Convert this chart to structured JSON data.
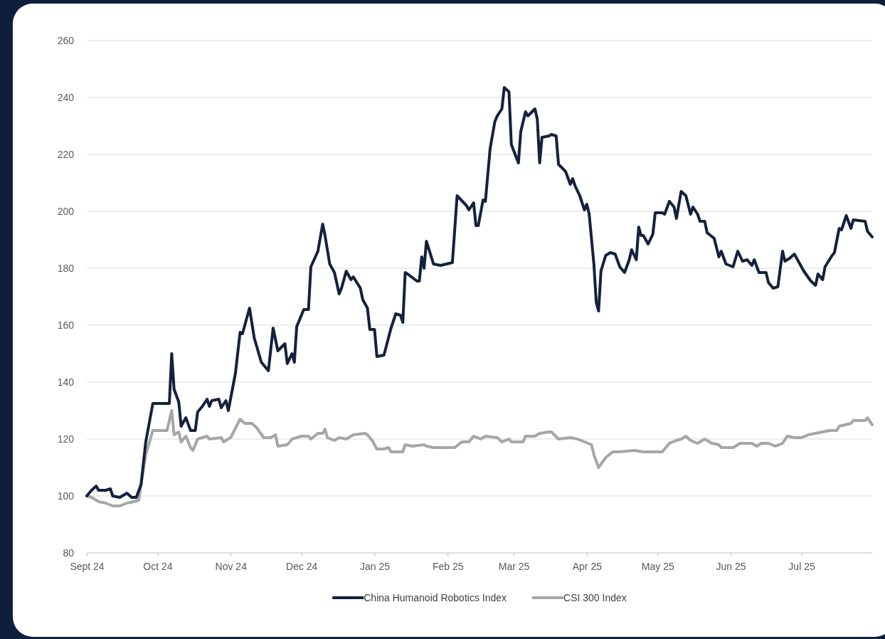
{
  "chart_data": {
    "type": "line",
    "xlim": [
      "2024-09-01",
      "2025-07-31"
    ],
    "xticks": [
      {
        "value": "2024-09-01",
        "label": "Sept 24"
      },
      {
        "value": "2024-10-01",
        "label": "Oct 24"
      },
      {
        "value": "2024-11-01",
        "label": "Nov 24"
      },
      {
        "value": "2024-12-01",
        "label": "Dec 24"
      },
      {
        "value": "2025-01-01",
        "label": "Jan 25"
      },
      {
        "value": "2025-02-01",
        "label": "Feb 25"
      },
      {
        "value": "2025-03-01",
        "label": "Mar 25"
      },
      {
        "value": "2025-04-01",
        "label": "Apr 25"
      },
      {
        "value": "2025-05-01",
        "label": "May 25"
      },
      {
        "value": "2025-06-01",
        "label": "Jun 25"
      },
      {
        "value": "2025-07-01",
        "label": "Jul 25"
      }
    ],
    "ylim": [
      80,
      260
    ],
    "yticks": [
      80,
      100,
      120,
      140,
      160,
      180,
      200,
      220,
      240,
      260
    ],
    "grid": "y",
    "legend": "bottom",
    "line_style": "solid",
    "marker": "none",
    "series": [
      {
        "name": "China Humanoid Robotics Index",
        "color": "#14213d",
        "x": [
          "2024-09-01",
          "2024-09-03",
          "2024-09-05",
          "2024-09-06",
          "2024-09-09",
          "2024-09-11",
          "2024-09-12",
          "2024-09-15",
          "2024-09-18",
          "2024-09-20",
          "2024-09-22",
          "2024-09-24",
          "2024-09-26",
          "2024-09-29",
          "2024-10-05",
          "2024-10-06",
          "2024-10-07",
          "2024-10-08",
          "2024-10-10",
          "2024-10-11",
          "2024-10-13",
          "2024-10-15",
          "2024-10-17",
          "2024-10-18",
          "2024-10-20",
          "2024-10-22",
          "2024-10-23",
          "2024-10-24",
          "2024-10-27",
          "2024-10-28",
          "2024-10-30",
          "2024-10-31",
          "2024-11-03",
          "2024-11-05",
          "2024-11-06",
          "2024-11-09",
          "2024-11-11",
          "2024-11-14",
          "2024-11-17",
          "2024-11-19",
          "2024-11-21",
          "2024-11-24",
          "2024-11-25",
          "2024-11-27",
          "2024-11-28",
          "2024-11-29",
          "2024-12-02",
          "2024-12-04",
          "2024-12-05",
          "2024-12-08",
          "2024-12-10",
          "2024-12-11",
          "2024-12-13",
          "2024-12-15",
          "2024-12-17",
          "2024-12-18",
          "2024-12-20",
          "2024-12-22",
          "2024-12-23",
          "2024-12-26",
          "2024-12-27",
          "2024-12-29",
          "2024-12-30",
          "2025-01-01",
          "2025-01-02",
          "2025-01-05",
          "2025-01-08",
          "2025-01-10",
          "2025-01-12",
          "2025-01-13",
          "2025-01-14",
          "2025-01-15",
          "2025-01-19",
          "2025-01-20",
          "2025-01-21",
          "2025-01-22",
          "2025-01-23",
          "2025-01-26",
          "2025-01-29",
          "2025-02-03",
          "2025-02-04",
          "2025-02-05",
          "2025-02-09",
          "2025-02-10",
          "2025-02-12",
          "2025-02-13",
          "2025-02-14",
          "2025-02-16",
          "2025-02-17",
          "2025-02-19",
          "2025-02-21",
          "2025-02-22",
          "2025-02-24",
          "2025-02-25",
          "2025-02-27",
          "2025-02-28",
          "2025-03-03",
          "2025-03-04",
          "2025-03-06",
          "2025-03-07",
          "2025-03-10",
          "2025-03-11",
          "2025-03-12",
          "2025-03-13",
          "2025-03-16",
          "2025-03-17",
          "2025-03-19",
          "2025-03-20",
          "2025-03-23",
          "2025-03-25",
          "2025-03-26",
          "2025-03-27",
          "2025-03-29",
          "2025-03-31",
          "2025-04-01",
          "2025-04-02",
          "2025-04-04",
          "2025-04-05",
          "2025-04-06",
          "2025-04-07",
          "2025-04-09",
          "2025-04-11",
          "2025-04-13",
          "2025-04-15",
          "2025-04-17",
          "2025-04-19",
          "2025-04-20",
          "2025-04-22",
          "2025-04-23",
          "2025-04-24",
          "2025-04-25",
          "2025-04-27",
          "2025-04-29",
          "2025-04-30",
          "2025-05-03",
          "2025-05-04",
          "2025-05-06",
          "2025-05-08",
          "2025-05-09",
          "2025-05-11",
          "2025-05-13",
          "2025-05-15",
          "2025-05-16",
          "2025-05-18",
          "2025-05-19",
          "2025-05-21",
          "2025-05-22",
          "2025-05-25",
          "2025-05-27",
          "2025-05-28",
          "2025-05-30",
          "2025-06-02",
          "2025-06-04",
          "2025-06-06",
          "2025-06-08",
          "2025-06-10",
          "2025-06-11",
          "2025-06-13",
          "2025-06-16",
          "2025-06-17",
          "2025-06-19",
          "2025-06-21",
          "2025-06-23",
          "2025-06-24",
          "2025-06-26",
          "2025-06-28",
          "2025-06-29",
          "2025-07-02",
          "2025-07-05",
          "2025-07-07",
          "2025-07-08",
          "2025-07-10",
          "2025-07-11",
          "2025-07-14",
          "2025-07-15",
          "2025-07-17",
          "2025-07-18",
          "2025-07-20",
          "2025-07-22",
          "2025-07-23",
          "2025-07-28",
          "2025-07-29",
          "2025-07-31"
        ],
        "values": [
          100,
          102,
          103.5,
          102,
          102,
          102.5,
          100,
          99.5,
          101,
          99.5,
          99.5,
          104,
          119,
          132.5,
          132.5,
          132.5,
          150,
          137.5,
          133,
          124.5,
          127.5,
          123,
          123,
          129.5,
          131.5,
          134,
          131.5,
          133.5,
          134,
          131,
          133.5,
          130,
          143,
          157.5,
          157,
          166,
          155.5,
          147,
          144,
          159,
          151,
          153.5,
          146.5,
          150,
          147,
          159.5,
          165.5,
          165.5,
          180.5,
          186,
          195.5,
          191.5,
          181.5,
          178.5,
          171,
          173,
          179,
          176,
          177,
          173,
          169,
          166,
          158.5,
          158.5,
          149,
          149.5,
          159,
          164,
          163.5,
          161,
          178.5,
          178,
          175.5,
          175.5,
          184,
          180,
          189.5,
          181.5,
          181,
          182,
          193.5,
          205.5,
          202,
          200.5,
          203,
          195,
          195,
          204,
          203.5,
          222,
          231.5,
          233.5,
          236,
          243.5,
          242,
          223.5,
          217,
          228,
          235,
          233.5,
          236,
          232.5,
          217,
          226,
          226.5,
          227,
          226.5,
          216.5,
          214,
          209.5,
          211.5,
          209,
          205.5,
          200.5,
          202.5,
          199,
          181.5,
          168,
          165,
          179,
          184.5,
          185.5,
          185,
          180.5,
          178.5,
          183,
          186.5,
          183,
          194.5,
          191.5,
          191.5,
          188.5,
          192,
          199.5,
          199.5,
          199,
          203.5,
          201.5,
          197.5,
          207,
          205.5,
          199,
          201.5,
          199,
          196.5,
          196.5,
          192.5,
          190.5,
          184,
          186,
          181.5,
          180.5,
          186,
          182.5,
          183,
          181,
          183,
          178.5,
          178.5,
          175,
          173,
          173.5,
          186,
          182.5,
          183.5,
          185,
          183.5,
          179,
          175.5,
          174,
          178,
          176,
          180.5,
          184.5,
          185.5,
          194,
          193.5,
          198.5,
          194,
          197,
          196.5,
          193,
          191
        ]
      },
      {
        "name": "CSI 300 Index",
        "color": "#a6a6a6",
        "x": [
          "2024-09-01",
          "2024-09-03",
          "2024-09-06",
          "2024-09-09",
          "2024-09-12",
          "2024-09-15",
          "2024-09-18",
          "2024-09-21",
          "2024-09-23",
          "2024-09-24",
          "2024-09-26",
          "2024-09-29",
          "2024-10-05",
          "2024-10-07",
          "2024-10-08",
          "2024-10-10",
          "2024-10-11",
          "2024-10-13",
          "2024-10-15",
          "2024-10-16",
          "2024-10-18",
          "2024-10-22",
          "2024-10-23",
          "2024-10-28",
          "2024-10-29",
          "2024-11-01",
          "2024-11-05",
          "2024-11-07",
          "2024-11-10",
          "2024-11-12",
          "2024-11-15",
          "2024-11-18",
          "2024-11-20",
          "2024-11-21",
          "2024-11-25",
          "2024-11-27",
          "2024-12-01",
          "2024-12-04",
          "2024-12-05",
          "2024-12-08",
          "2024-12-10",
          "2024-12-11",
          "2024-12-12",
          "2024-12-15",
          "2024-12-17",
          "2024-12-20",
          "2024-12-23",
          "2024-12-28",
          "2024-12-29",
          "2024-12-31",
          "2025-01-02",
          "2025-01-05",
          "2025-01-07",
          "2025-01-08",
          "2025-01-13",
          "2025-01-14",
          "2025-01-17",
          "2025-01-22",
          "2025-01-23",
          "2025-01-26",
          "2025-02-04",
          "2025-02-07",
          "2025-02-10",
          "2025-02-12",
          "2025-02-15",
          "2025-02-17",
          "2025-02-22",
          "2025-02-24",
          "2025-02-27",
          "2025-02-28",
          "2025-03-05",
          "2025-03-06",
          "2025-03-10",
          "2025-03-12",
          "2025-03-16",
          "2025-03-17",
          "2025-03-20",
          "2025-03-25",
          "2025-03-28",
          "2025-03-31",
          "2025-04-03",
          "2025-04-04",
          "2025-04-06",
          "2025-04-09",
          "2025-04-12",
          "2025-04-15",
          "2025-04-21",
          "2025-04-25",
          "2025-04-28",
          "2025-05-03",
          "2025-05-06",
          "2025-05-09",
          "2025-05-11",
          "2025-05-13",
          "2025-05-15",
          "2025-05-18",
          "2025-05-21",
          "2025-05-24",
          "2025-05-27",
          "2025-05-28",
          "2025-06-02",
          "2025-06-05",
          "2025-06-10",
          "2025-06-12",
          "2025-06-14",
          "2025-06-17",
          "2025-06-20",
          "2025-06-23",
          "2025-06-25",
          "2025-06-28",
          "2025-07-01",
          "2025-07-04",
          "2025-07-07",
          "2025-07-10",
          "2025-07-13",
          "2025-07-16",
          "2025-07-17",
          "2025-07-22",
          "2025-07-23",
          "2025-07-28",
          "2025-07-29",
          "2025-07-31"
        ],
        "values": [
          100,
          99.5,
          98,
          97.5,
          96.5,
          96.5,
          97.5,
          98,
          98.5,
          104,
          114.5,
          123,
          123,
          130,
          121.5,
          122.5,
          119,
          121,
          117,
          116,
          120,
          121,
          120,
          120.5,
          119,
          120.5,
          127,
          125.5,
          125.5,
          124,
          120.5,
          120.5,
          121.5,
          117.5,
          118,
          120,
          121,
          121,
          120,
          122,
          122,
          123.5,
          120.5,
          119.5,
          120.5,
          120,
          121.5,
          122,
          121.5,
          119.5,
          116.5,
          116.5,
          117,
          115.5,
          115.5,
          118,
          117.5,
          118,
          117.5,
          117,
          117,
          119,
          119,
          121,
          120,
          121,
          120.5,
          119,
          120,
          119,
          119,
          121,
          121,
          122,
          122.5,
          122.5,
          120,
          120.5,
          120,
          119,
          118,
          114.5,
          110,
          113.5,
          115.5,
          115.5,
          116,
          115.5,
          115.5,
          115.5,
          118.5,
          119.5,
          120,
          121,
          119.5,
          118.5,
          120,
          118.5,
          118,
          117,
          117,
          118.5,
          118.5,
          117.5,
          118.5,
          118.5,
          117.5,
          118.5,
          121,
          120.5,
          120.5,
          121.5,
          122,
          122.5,
          123,
          123,
          124.5,
          125.5,
          126.5,
          126.5,
          127.5,
          125
        ]
      }
    ]
  }
}
